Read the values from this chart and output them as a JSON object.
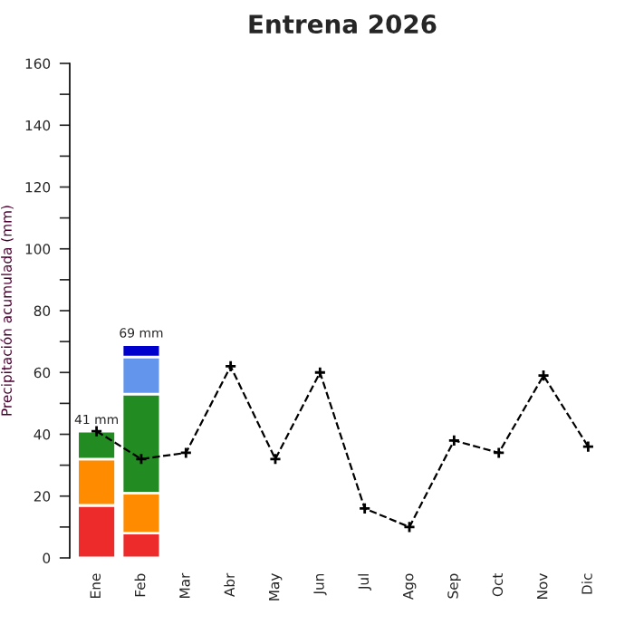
{
  "chart_data": {
    "type": "bar",
    "stacked": true,
    "title": "Entrena 2026",
    "ylabel": "Precipitación acumulada (mm)",
    "categories": [
      "Ene",
      "Feb",
      "Mar",
      "Abr",
      "May",
      "Jun",
      "Jul",
      "Ago",
      "Sep",
      "Oct",
      "Nov",
      "Dic"
    ],
    "series": [
      {
        "color": "#ee2b2b",
        "values": [
          17,
          8,
          null,
          null,
          null,
          null,
          null,
          null,
          null,
          null,
          null,
          null
        ]
      },
      {
        "color": "#ff8c00",
        "values": [
          15,
          13,
          null,
          null,
          null,
          null,
          null,
          null,
          null,
          null,
          null,
          null
        ]
      },
      {
        "color": "#228b22",
        "values": [
          9,
          32,
          null,
          null,
          null,
          null,
          null,
          null,
          null,
          null,
          null,
          null
        ]
      },
      {
        "color": "#6495ed",
        "values": [
          null,
          12,
          null,
          null,
          null,
          null,
          null,
          null,
          null,
          null,
          null,
          null
        ]
      },
      {
        "color": "#0000cd",
        "values": [
          null,
          4,
          null,
          null,
          null,
          null,
          null,
          null,
          null,
          null,
          null,
          null
        ]
      },
      {
        "type": "line",
        "color": "#000000",
        "marker": "cross",
        "line_style": "dashed",
        "values": [
          41,
          32,
          34,
          62,
          32,
          60,
          16,
          10,
          38,
          34,
          59,
          36
        ]
      }
    ],
    "totals": [
      "41 mm",
      "69 mm",
      null,
      null,
      null,
      null,
      null,
      null,
      null,
      null,
      null,
      null
    ],
    "ylim": [
      0,
      160
    ],
    "yticks": [
      0,
      {
        "value": 10,
        "label": null
      },
      20,
      {
        "value": 30,
        "label": null
      },
      40,
      {
        "value": 50,
        "label": null
      },
      60,
      {
        "value": 70,
        "label": null
      },
      80,
      {
        "value": 90,
        "label": null
      },
      100,
      {
        "value": 110,
        "label": null
      },
      120,
      {
        "value": 130,
        "label": null
      },
      140,
      {
        "value": 150,
        "label": null
      },
      160
    ],
    "grid": false,
    "legend": false
  }
}
